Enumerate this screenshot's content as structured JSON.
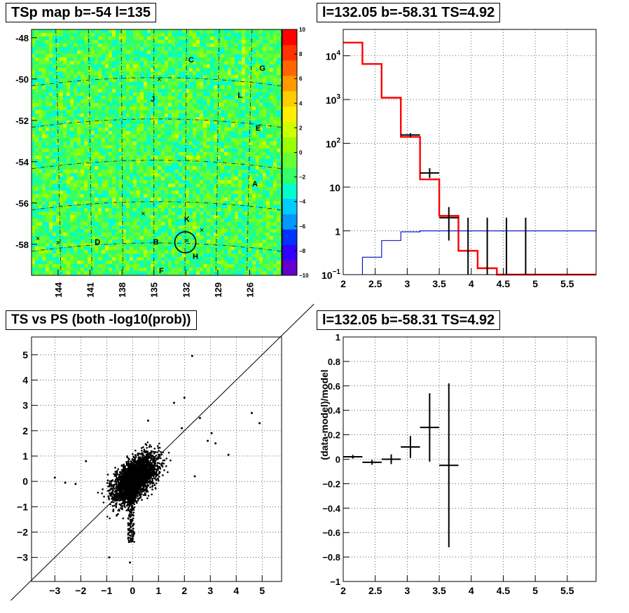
{
  "chart_data": [
    {
      "type": "heatmap",
      "title": "TSp map b=-54 l=135",
      "xlabel": "",
      "ylabel": "",
      "x_ticks": [
        "144",
        "141",
        "138",
        "135",
        "132",
        "129",
        "126"
      ],
      "y_ticks": [
        "-48",
        "-50",
        "-52",
        "-54",
        "-56",
        "-58"
      ],
      "xlim": [
        146.5,
        123
      ],
      "ylim": [
        -59.5,
        -47.6
      ],
      "zlim": [
        -10,
        10
      ],
      "colorbar_ticks": [
        "10",
        "8",
        "6",
        "4",
        "2",
        "0",
        "−2",
        "−4",
        "−6",
        "−8",
        "−10"
      ],
      "palette": [
        "#6600cc",
        "#3300ff",
        "#0033ff",
        "#0099ff",
        "#00ccff",
        "#00ffcc",
        "#33ff66",
        "#66ff33",
        "#99ff00",
        "#ccff00",
        "#ffee00",
        "#ffcc00",
        "#ff9900",
        "#ff6600",
        "#ff3300",
        "#ff0000"
      ],
      "source_labels": [
        {
          "text": "C",
          "l": 131.5,
          "b": -49.2
        },
        {
          "text": "G",
          "l": 124.8,
          "b": -49.6
        },
        {
          "text": "J",
          "l": 135.1,
          "b": -51.1
        },
        {
          "text": "L",
          "l": 126.9,
          "b": -50.9
        },
        {
          "text": "E",
          "l": 125.2,
          "b": -52.5
        },
        {
          "text": "A",
          "l": 125.5,
          "b": -55.2
        },
        {
          "text": "K",
          "l": 131.9,
          "b": -56.9
        },
        {
          "text": "D",
          "l": 140.3,
          "b": -58.0
        },
        {
          "text": "B",
          "l": 134.8,
          "b": -58.0
        },
        {
          "text": "H",
          "l": 131.1,
          "b": -58.7
        },
        {
          "text": "F",
          "l": 134.3,
          "b": -59.4
        }
      ],
      "markers": [
        {
          "l": 134.5,
          "b": -50.0
        },
        {
          "l": 136.0,
          "b": -56.5
        },
        {
          "l": 130.5,
          "b": -57.3
        },
        {
          "l": 145.9,
          "b": -57.7
        },
        {
          "l": 144.0,
          "b": -57.9
        },
        {
          "l": 131.9,
          "b": -57.8
        }
      ],
      "circle": {
        "l": 132.05,
        "b": -57.9
      }
    },
    {
      "type": "line",
      "title": "l=132.05 b=-58.31 TS=4.92",
      "xlabel": "",
      "ylabel": "",
      "y_scale": "log",
      "xlim": [
        2,
        5.95
      ],
      "ylim": [
        0.1,
        40000
      ],
      "x_ticks": [
        "2",
        "2.5",
        "3",
        "3.5",
        "4",
        "4.5",
        "5",
        "5.5"
      ],
      "y_ticks": [
        {
          "value": 10000,
          "base": "10",
          "exp": "4"
        },
        {
          "value": 1000,
          "base": "10",
          "exp": "3"
        },
        {
          "value": 100,
          "base": "10",
          "exp": "2"
        },
        {
          "value": 10,
          "base": "10",
          "exp": ""
        },
        {
          "value": 1,
          "base": "1",
          "exp": ""
        },
        {
          "value": 0.1,
          "base": "10",
          "exp": "−1"
        }
      ],
      "bin_edges": [
        2,
        2.3,
        2.6,
        2.9,
        3.2,
        3.5,
        3.8,
        4.1,
        4.4,
        4.7,
        5.0,
        5.3,
        5.6,
        5.95
      ],
      "series": [
        {
          "values": [
            20000,
            6500,
            1100,
            140,
            15,
            2.2,
            0.35,
            0.14,
            0.1,
            0.1,
            0.1,
            0.1,
            0.1
          ],
          "color": "#ff0000"
        },
        {
          "values": [
            0.1,
            0.25,
            0.6,
            0.95,
            1.0,
            1.0,
            1.0,
            1.0,
            1.0,
            1.0,
            1.0,
            1.0,
            1.0
          ],
          "color": "#0000cc"
        }
      ],
      "points": [
        {
          "x": 3.05,
          "y": 155,
          "xerr": 0.15,
          "ylo": 140,
          "yhi": 170
        },
        {
          "x": 3.35,
          "y": 21,
          "xerr": 0.15,
          "ylo": 16,
          "yhi": 27
        },
        {
          "x": 3.65,
          "y": 2,
          "xerr": 0.15,
          "ylo": 0.6,
          "yhi": 3.5
        },
        {
          "x": 3.95,
          "y": 0.1,
          "xerr": 0,
          "ylo": 0.1,
          "yhi": 2
        },
        {
          "x": 4.25,
          "y": 0.1,
          "xerr": 0,
          "ylo": 0.1,
          "yhi": 2
        },
        {
          "x": 4.55,
          "y": 0.1,
          "xerr": 0,
          "ylo": 0.1,
          "yhi": 2
        },
        {
          "x": 4.85,
          "y": 0.1,
          "xerr": 0,
          "ylo": 0.1,
          "yhi": 2
        }
      ],
      "grid": true
    },
    {
      "type": "scatter",
      "title": "TS vs PS (both -log10(prob))",
      "xlabel": "",
      "ylabel": "",
      "xlim": [
        -3.9,
        5.75
      ],
      "ylim": [
        -3.95,
        5.7
      ],
      "x_ticks": [
        "−3",
        "−2",
        "−1",
        "0",
        "1",
        "2",
        "3",
        "4",
        "5"
      ],
      "y_ticks": [
        "−3",
        "−2",
        "−1",
        "0",
        "1",
        "2",
        "3",
        "4",
        "5"
      ],
      "outliers": [
        [
          2.3,
          4.95
        ],
        [
          4.6,
          2.7
        ],
        [
          4.9,
          2.3
        ],
        [
          3.7,
          1.05
        ],
        [
          3.05,
          1.9
        ],
        [
          -3.0,
          0.15
        ],
        [
          -2.6,
          -0.05
        ],
        [
          2.6,
          2.5
        ],
        [
          2.0,
          3.3
        ],
        [
          1.6,
          3.1
        ],
        [
          3.2,
          1.5
        ],
        [
          -0.9,
          -3.0
        ],
        [
          -0.1,
          -3.2
        ],
        [
          0.6,
          2.4
        ],
        [
          2.9,
          1.6
        ],
        [
          -1.8,
          0.8
        ],
        [
          -2.2,
          -0.1
        ],
        [
          1.9,
          2.1
        ],
        [
          2.4,
          0.2
        ]
      ],
      "diagonal": true,
      "grid": true
    },
    {
      "type": "scatter",
      "title": "l=132.05 b=-58.31 TS=4.92",
      "xlabel": "",
      "ylabel": "(data-model)/model",
      "xlim": [
        2,
        5.95
      ],
      "ylim": [
        -1,
        1
      ],
      "x_ticks": [
        "2",
        "2.5",
        "3",
        "3.5",
        "4",
        "4.5",
        "5",
        "5.5"
      ],
      "y_ticks": [
        "−1",
        "−0.8",
        "−0.6",
        "−0.4",
        "−0.2",
        "0",
        "0.2",
        "0.4",
        "0.6",
        "0.8",
        "1"
      ],
      "points": [
        {
          "x": 2.15,
          "y": 0.02,
          "xerr": 0.15,
          "yerr": 0.015
        },
        {
          "x": 2.45,
          "y": -0.025,
          "xerr": 0.15,
          "yerr": 0.02
        },
        {
          "x": 2.75,
          "y": 0.0,
          "xerr": 0.15,
          "yerr": 0.04
        },
        {
          "x": 3.05,
          "y": 0.1,
          "xerr": 0.15,
          "yerr": 0.09
        },
        {
          "x": 3.35,
          "y": 0.26,
          "xerr": 0.15,
          "yerr": 0.28
        },
        {
          "x": 3.65,
          "y": -0.05,
          "xerr": 0.15,
          "yerr": 0.67
        }
      ],
      "grid": true
    }
  ]
}
